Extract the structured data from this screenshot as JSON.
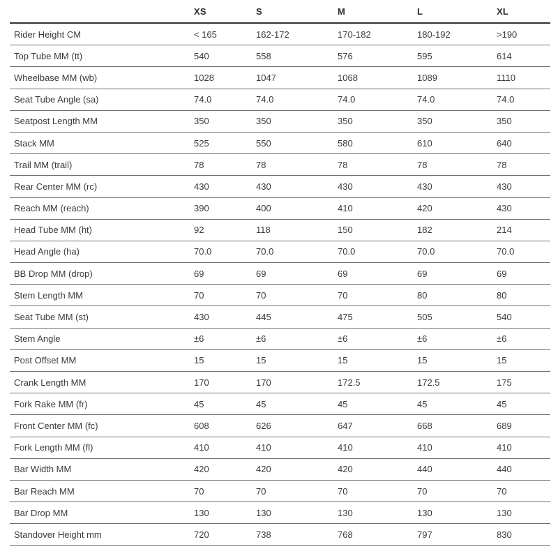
{
  "colors": {
    "background": "#ffffff",
    "text": "#3b3b3b",
    "header_text": "#2b2b2b",
    "header_border": "#323232",
    "row_border": "#6f6f6f"
  },
  "chart_data": {
    "type": "table",
    "title": "",
    "corner_label": "",
    "columns": [
      "XS",
      "S",
      "M",
      "L",
      "XL"
    ],
    "rows": [
      {
        "label": "Rider Height CM",
        "values": [
          "< 165",
          "162-172",
          "170-182",
          "180-192",
          ">190"
        ]
      },
      {
        "label": "Top Tube MM (tt)",
        "values": [
          "540",
          "558",
          "576",
          "595",
          "614"
        ]
      },
      {
        "label": "Wheelbase MM (wb)",
        "values": [
          "1028",
          "1047",
          "1068",
          "1089",
          "1110"
        ]
      },
      {
        "label": "Seat Tube Angle (sa)",
        "values": [
          "74.0",
          "74.0",
          "74.0",
          "74.0",
          "74.0"
        ]
      },
      {
        "label": "Seatpost Length MM",
        "values": [
          "350",
          "350",
          "350",
          "350",
          "350"
        ]
      },
      {
        "label": "Stack MM",
        "values": [
          "525",
          "550",
          "580",
          "610",
          "640"
        ]
      },
      {
        "label": "Trail MM (trail)",
        "values": [
          "78",
          "78",
          "78",
          "78",
          "78"
        ]
      },
      {
        "label": "Rear Center MM (rc)",
        "values": [
          "430",
          "430",
          "430",
          "430",
          "430"
        ]
      },
      {
        "label": "Reach MM (reach)",
        "values": [
          "390",
          "400",
          "410",
          "420",
          "430"
        ]
      },
      {
        "label": "Head Tube MM (ht)",
        "values": [
          "92",
          "118",
          "150",
          "182",
          "214"
        ]
      },
      {
        "label": "Head Angle (ha)",
        "values": [
          "70.0",
          "70.0",
          "70.0",
          "70.0",
          "70.0"
        ]
      },
      {
        "label": "BB Drop MM (drop)",
        "values": [
          "69",
          "69",
          "69",
          "69",
          "69"
        ]
      },
      {
        "label": "Stem Length MM",
        "values": [
          "70",
          "70",
          "70",
          "80",
          "80"
        ]
      },
      {
        "label": "Seat Tube MM (st)",
        "values": [
          "430",
          "445",
          "475",
          "505",
          "540"
        ]
      },
      {
        "label": "Stem Angle",
        "values": [
          "±6",
          "±6",
          "±6",
          "±6",
          "±6"
        ]
      },
      {
        "label": "Post Offset MM",
        "values": [
          "15",
          "15",
          "15",
          "15",
          "15"
        ]
      },
      {
        "label": "Crank Length MM",
        "values": [
          "170",
          "170",
          "172.5",
          "172.5",
          "175"
        ]
      },
      {
        "label": "Fork Rake MM (fr)",
        "values": [
          "45",
          "45",
          "45",
          "45",
          "45"
        ]
      },
      {
        "label": "Front Center MM (fc)",
        "values": [
          "608",
          "626",
          "647",
          "668",
          "689"
        ]
      },
      {
        "label": "Fork Length MM (fl)",
        "values": [
          "410",
          "410",
          "410",
          "410",
          "410"
        ]
      },
      {
        "label": "Bar Width MM",
        "values": [
          "420",
          "420",
          "420",
          "440",
          "440"
        ]
      },
      {
        "label": "Bar Reach MM",
        "values": [
          "70",
          "70",
          "70",
          "70",
          "70"
        ]
      },
      {
        "label": "Bar Drop MM",
        "values": [
          "130",
          "130",
          "130",
          "130",
          "130"
        ]
      },
      {
        "label": "Standover Height mm",
        "values": [
          "720",
          "738",
          "768",
          "797",
          "830"
        ]
      }
    ]
  }
}
